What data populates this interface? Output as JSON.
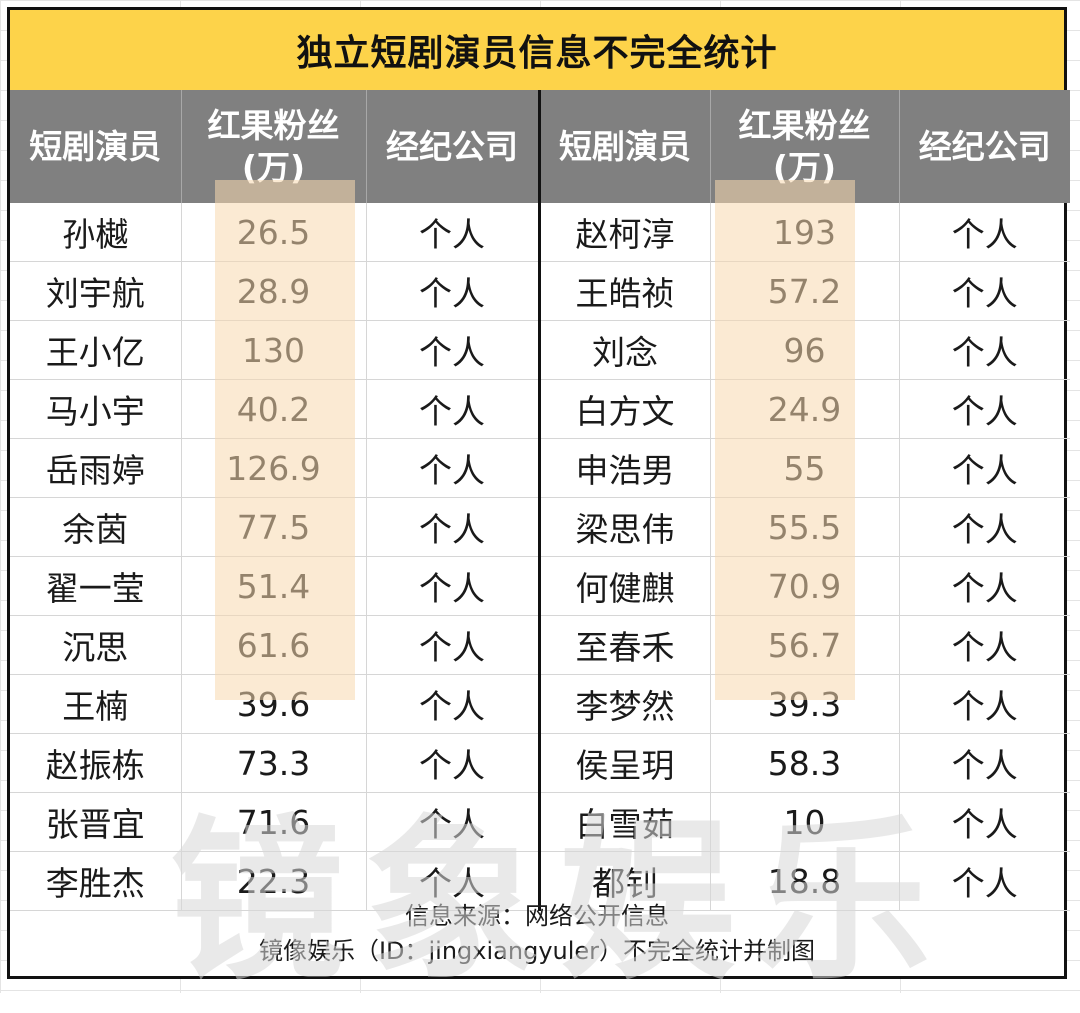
{
  "title": "独立短剧演员信息不完全统计",
  "headers": {
    "actor": "短剧演员",
    "fans_line1": "红果粉丝",
    "fans_line2": "(万)",
    "agency": "经纪公司"
  },
  "left_rows": [
    {
      "name": "孙樾",
      "fans": "26.5",
      "agency": "个人"
    },
    {
      "name": "刘宇航",
      "fans": "28.9",
      "agency": "个人"
    },
    {
      "name": "王小亿",
      "fans": "130",
      "agency": "个人"
    },
    {
      "name": "马小宇",
      "fans": "40.2",
      "agency": "个人"
    },
    {
      "name": "岳雨婷",
      "fans": "126.9",
      "agency": "个人"
    },
    {
      "name": "余茵",
      "fans": "77.5",
      "agency": "个人"
    },
    {
      "name": "翟一莹",
      "fans": "51.4",
      "agency": "个人"
    },
    {
      "name": "沉思",
      "fans": "61.6",
      "agency": "个人"
    },
    {
      "name": "王楠",
      "fans": "39.6",
      "agency": "个人"
    },
    {
      "name": "赵振栋",
      "fans": "73.3",
      "agency": "个人"
    },
    {
      "name": "张晋宜",
      "fans": "71.6",
      "agency": "个人"
    },
    {
      "name": "李胜杰",
      "fans": "22.3",
      "agency": "个人"
    }
  ],
  "right_rows": [
    {
      "name": "赵柯淳",
      "fans": "193",
      "agency": "个人"
    },
    {
      "name": "王皓祯",
      "fans": "57.2",
      "agency": "个人"
    },
    {
      "name": "刘念",
      "fans": "96",
      "agency": "个人"
    },
    {
      "name": "白方文",
      "fans": "24.9",
      "agency": "个人"
    },
    {
      "name": "申浩男",
      "fans": "55",
      "agency": "个人"
    },
    {
      "name": "梁思伟",
      "fans": "55.5",
      "agency": "个人"
    },
    {
      "name": "何健麒",
      "fans": "70.9",
      "agency": "个人"
    },
    {
      "name": "至春禾",
      "fans": "56.7",
      "agency": "个人"
    },
    {
      "name": "李梦然",
      "fans": "39.3",
      "agency": "个人"
    },
    {
      "name": "侯呈玥",
      "fans": "58.3",
      "agency": "个人"
    },
    {
      "name": "白雪茹",
      "fans": "10",
      "agency": "个人"
    },
    {
      "name": "都钊",
      "fans": "18.8",
      "agency": "个人"
    }
  ],
  "footer": {
    "source": "信息来源：网络公开信息",
    "credit": "镜像娱乐（ID：jingxiangyuler）不完全统计并制图"
  },
  "watermark": "镜象娱乐",
  "colors": {
    "title_bg": "#fdd34a",
    "header_bg": "#808080",
    "border": "#111111"
  }
}
